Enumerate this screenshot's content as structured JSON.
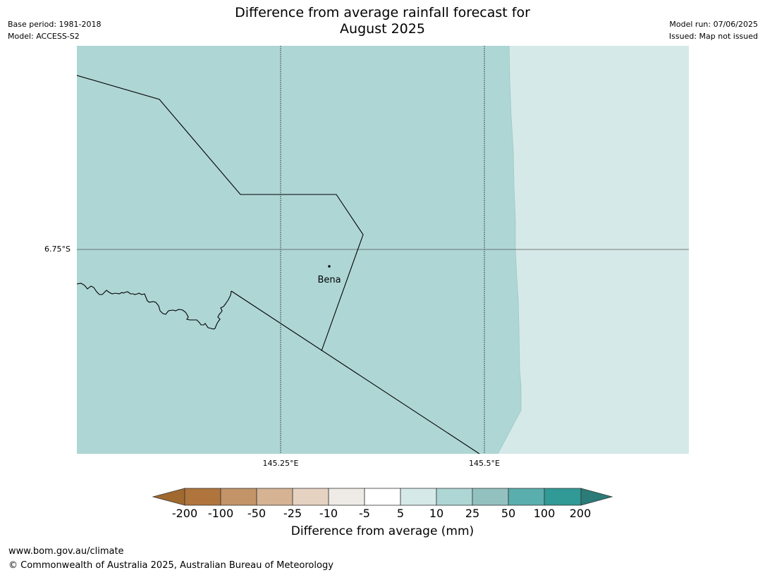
{
  "title": {
    "line1": "Difference from average rainfall forecast for",
    "line2": "August 2025"
  },
  "meta": {
    "base_period": "Base period: 1981-2018",
    "model": "Model: ACCESS-S2",
    "model_run": "Model run: 07/06/2025",
    "issued": "Issued: Map not issued"
  },
  "map": {
    "place_label": "Bena",
    "lat_label": "6.75°S",
    "lon_labels": [
      "145.25°E",
      "145.5°E"
    ],
    "colors": {
      "main_fill": "#aed6d5",
      "east_fill": "#d5e9e8"
    }
  },
  "legend": {
    "title": "Difference from average (mm)",
    "ticks": [
      "-200",
      "-100",
      "-50",
      "-25",
      "-10",
      "-5",
      "5",
      "10",
      "25",
      "50",
      "100",
      "200"
    ],
    "colors": [
      "#a0692f",
      "#b0753c",
      "#c39468",
      "#d5b393",
      "#e5d2c0",
      "#eeebe7",
      "#ffffff",
      "#d5e9e8",
      "#aed6d5",
      "#93c1c0",
      "#5aaeae",
      "#319996",
      "#2b7b78"
    ]
  },
  "footer": {
    "url": "www.bom.gov.au/climate",
    "copyright": "© Commonwealth of Australia 2025, Australian Bureau of Meteorology"
  }
}
